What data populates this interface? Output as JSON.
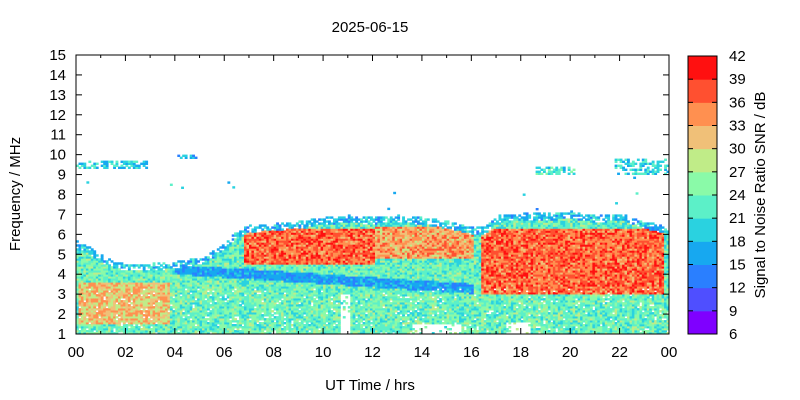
{
  "chart_data": {
    "type": "heatmap",
    "title": "2025-06-15",
    "xlabel": "UT Time / hrs",
    "ylabel": "Frequency / MHz",
    "colorbar_label": "Signal to Noise Ratio SNR / dB",
    "xlim": [
      0,
      24
    ],
    "ylim": [
      1,
      15
    ],
    "x_ticks": [
      "00",
      "02",
      "04",
      "06",
      "08",
      "10",
      "12",
      "14",
      "16",
      "18",
      "20",
      "22",
      "00"
    ],
    "y_ticks": [
      "1",
      "2",
      "3",
      "4",
      "5",
      "6",
      "7",
      "8",
      "9",
      "10",
      "11",
      "12",
      "13",
      "14",
      "15"
    ],
    "colorbar_ticks": [
      "6",
      "9",
      "12",
      "15",
      "18",
      "21",
      "24",
      "27",
      "30",
      "33",
      "36",
      "39",
      "42"
    ],
    "colorbar_range": [
      6,
      42
    ],
    "colorbar_colors": [
      "#7f00ff",
      "#4f4fff",
      "#2a7fff",
      "#17a8f0",
      "#2ad2e0",
      "#5cf0c8",
      "#8afaa8",
      "#c0ec88",
      "#f0c078",
      "#ff9050",
      "#ff5030",
      "#ff1010"
    ],
    "grid": false,
    "upper_edge_mhz": [
      [
        0.0,
        5.6
      ],
      [
        0.5,
        5.3
      ],
      [
        1.0,
        4.9
      ],
      [
        1.5,
        4.6
      ],
      [
        2.0,
        4.5
      ],
      [
        3.0,
        4.5
      ],
      [
        4.0,
        4.6
      ],
      [
        5.0,
        4.8
      ],
      [
        6.0,
        5.5
      ],
      [
        6.5,
        6.2
      ],
      [
        7.0,
        6.4
      ],
      [
        8.0,
        6.5
      ],
      [
        9.0,
        6.6
      ],
      [
        10.0,
        6.8
      ],
      [
        11.0,
        6.9
      ],
      [
        12.0,
        6.8
      ],
      [
        13.0,
        6.9
      ],
      [
        14.0,
        6.8
      ],
      [
        15.0,
        6.6
      ],
      [
        16.0,
        6.3
      ],
      [
        16.5,
        6.3
      ],
      [
        17.0,
        6.9
      ],
      [
        18.0,
        7.0
      ],
      [
        19.0,
        7.0
      ],
      [
        20.0,
        7.1
      ],
      [
        21.0,
        6.9
      ],
      [
        22.0,
        7.0
      ],
      [
        23.0,
        6.6
      ],
      [
        24.0,
        6.3
      ]
    ],
    "regions": [
      {
        "x": [
          0.1,
          3.8
        ],
        "y": [
          1.5,
          3.6
        ],
        "snr": 33
      },
      {
        "x": [
          6.7,
          12.0
        ],
        "y": [
          4.5,
          6.2
        ],
        "snr": 38
      },
      {
        "x": [
          12.0,
          16.0
        ],
        "y": [
          4.8,
          6.3
        ],
        "snr": 35
      },
      {
        "x": [
          16.3,
          23.8
        ],
        "y": [
          3.0,
          6.2
        ],
        "snr": 38
      },
      {
        "x": [
          0.0,
          24.0
        ],
        "y": [
          1.0,
          4.5
        ],
        "snr": 22
      }
    ],
    "sparse_patches": [
      {
        "x": [
          0.0,
          2.9
        ],
        "y": [
          9.3,
          9.7
        ],
        "snr": 20
      },
      {
        "x": [
          4.1,
          4.8
        ],
        "y": [
          9.8,
          10.0
        ],
        "snr": 18
      },
      {
        "x": [
          18.6,
          20.2
        ],
        "y": [
          9.0,
          9.3
        ],
        "snr": 22
      },
      {
        "x": [
          21.8,
          24.0
        ],
        "y": [
          9.0,
          9.7
        ],
        "snr": 21
      }
    ],
    "gaps": [
      {
        "x": [
          10.6,
          11.0
        ],
        "y": [
          1.0,
          3.0
        ]
      },
      {
        "x": [
          13.5,
          15.5
        ],
        "y": [
          1.0,
          1.5
        ]
      },
      {
        "x": [
          17.3,
          18.3
        ],
        "y": [
          1.0,
          1.6
        ]
      }
    ]
  }
}
